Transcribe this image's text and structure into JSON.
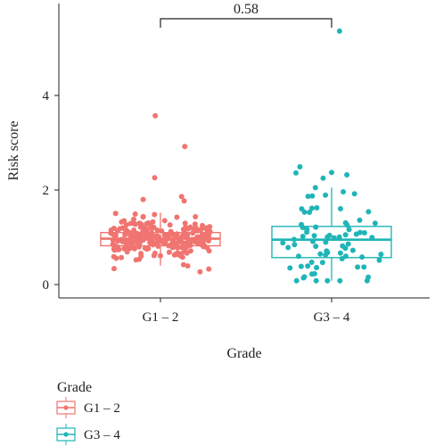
{
  "chart_data": {
    "type": "boxplot",
    "title": "",
    "xlabel": "Grade",
    "ylabel": "Risk score",
    "ylim": [
      -0.1,
      5.5
    ],
    "yticks": [
      "0",
      "2",
      "4"
    ],
    "categories": [
      "G1 – 2",
      "G3 – 4"
    ],
    "colors": [
      "#f07470",
      "#1fb5b8"
    ],
    "series": [
      {
        "name": "G1 – 2",
        "box": {
          "q1": 0.82,
          "median": 0.97,
          "q3": 1.1,
          "whisker_low": 0.4,
          "whisker_high": 1.52
        },
        "n_points": 260,
        "points_range": [
          0.02,
          2.14
        ],
        "outliers": [
          3.57,
          2.92,
          2.26,
          1.86,
          1.8,
          1.77
        ]
      },
      {
        "name": "G3 – 4",
        "box": {
          "q1": 0.57,
          "median": 0.95,
          "q3": 1.23,
          "whisker_low": 0.08,
          "whisker_high": 2.05
        },
        "n_points": 80,
        "points_range": [
          0.08,
          2.05
        ],
        "outliers": [
          5.36,
          2.49,
          2.37,
          2.36,
          2.32,
          2.25
        ]
      }
    ],
    "comparison": {
      "groups": [
        "G1 – 2",
        "G3 – 4"
      ],
      "label": "0.58"
    },
    "legend": {
      "title": "Grade",
      "position": "bottom-left",
      "entries": [
        "G1 – 2",
        "G3 – 4"
      ]
    },
    "grid": false
  }
}
